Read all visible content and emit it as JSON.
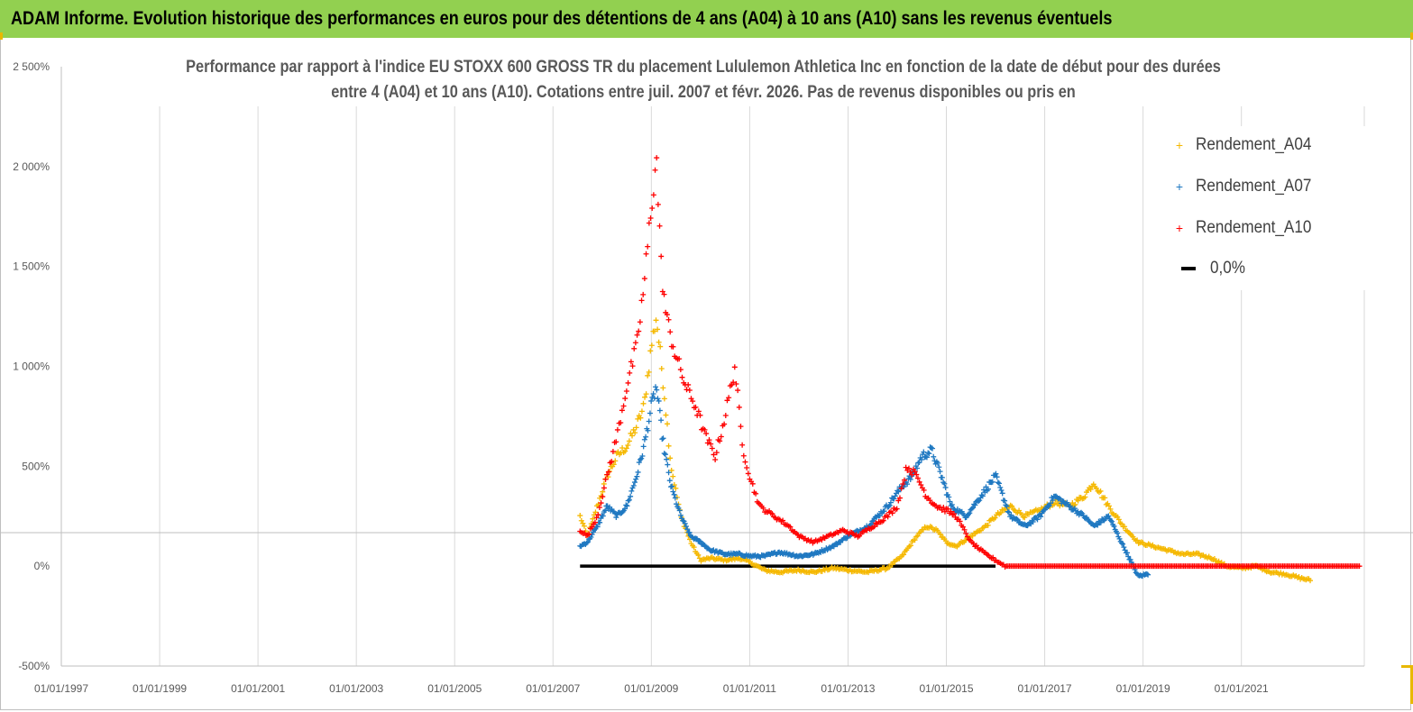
{
  "banner": {
    "title": "ADAM Informe. Evolution historique des performances en euros pour des détentions de 4 ans (A04) à 10 ans (A10) sans les revenus éventuels"
  },
  "chart_data": {
    "type": "scatter",
    "title_line1": "Performance par rapport à l'indice EU STOXX 600 GROSS TR  du placement Lululemon Athletica Inc en fonction de la date de début pour des durées",
    "title_line2": "entre 4 (A04) et 10 ans (A10).  Cotations entre juil. 2007 et févr. 2026. Pas de revenus disponibles ou pris en",
    "xlabel": "",
    "ylabel": "",
    "ylim": [
      -500,
      2500
    ],
    "xlim": [
      1997.0,
      2023.5
    ],
    "y_ticks": [
      "2 500%",
      "2 000%",
      "1 500%",
      "1 000%",
      "500%",
      "0%",
      "-500%"
    ],
    "y_tick_values": [
      2500,
      2000,
      1500,
      1000,
      500,
      0,
      -500
    ],
    "x_ticks": [
      "01/01/1997",
      "01/01/1999",
      "01/01/2001",
      "01/01/2003",
      "01/01/2005",
      "01/01/2007",
      "01/01/2009",
      "01/01/2011",
      "01/01/2013",
      "01/01/2015",
      "01/01/2017",
      "01/01/2019",
      "01/01/2021"
    ],
    "x_tick_values": [
      1997,
      1999,
      2001,
      2003,
      2005,
      2007,
      2009,
      2011,
      2013,
      2015,
      2017,
      2019,
      2021
    ],
    "series": [
      {
        "name": "Rendement_A04",
        "color": "#f5b800",
        "marker": "+",
        "x": [
          2007.55,
          2007.7,
          2007.9,
          2008.1,
          2008.3,
          2008.5,
          2008.7,
          2008.85,
          2009.0,
          2009.1,
          2009.25,
          2009.4,
          2009.6,
          2009.8,
          2010.0,
          2010.2,
          2010.5,
          2010.8,
          2011.0,
          2011.3,
          2011.6,
          2012.0,
          2012.3,
          2012.7,
          2013.0,
          2013.4,
          2013.8,
          2014.1,
          2014.4,
          2014.6,
          2014.8,
          2015.0,
          2015.2,
          2015.5,
          2015.8,
          2016.0,
          2016.3,
          2016.6,
          2016.9,
          2017.2,
          2017.5,
          2017.8,
          2018.0,
          2018.3,
          2018.6,
          2018.9,
          2019.2,
          2019.5,
          2019.8,
          2020.1,
          2020.4,
          2020.7,
          2021.0,
          2021.3,
          2021.6,
          2021.9,
          2022.2,
          2022.4
        ],
        "y": [
          250,
          150,
          300,
          450,
          550,
          600,
          700,
          800,
          1100,
          1250,
          900,
          500,
          250,
          120,
          30,
          40,
          30,
          40,
          20,
          -20,
          -30,
          -20,
          -30,
          -10,
          -20,
          -30,
          -10,
          50,
          150,
          200,
          180,
          120,
          100,
          150,
          200,
          250,
          300,
          250,
          280,
          320,
          300,
          350,
          420,
          300,
          200,
          120,
          100,
          80,
          60,
          60,
          40,
          0,
          -10,
          0,
          -30,
          -40,
          -60,
          -70
        ]
      },
      {
        "name": "Rendement_A07",
        "color": "#1f78c1",
        "marker": "+",
        "x": [
          2007.55,
          2007.7,
          2007.9,
          2008.1,
          2008.3,
          2008.5,
          2008.7,
          2008.85,
          2009.0,
          2009.1,
          2009.25,
          2009.4,
          2009.6,
          2009.8,
          2010.0,
          2010.2,
          2010.5,
          2010.8,
          2011.0,
          2011.3,
          2011.6,
          2012.0,
          2012.3,
          2012.7,
          2013.0,
          2013.4,
          2013.8,
          2014.1,
          2014.3,
          2014.5,
          2014.7,
          2014.9,
          2015.1,
          2015.4,
          2015.7,
          2016.0,
          2016.3,
          2016.6,
          2016.9,
          2017.2,
          2017.5,
          2017.8,
          2018.0,
          2018.3,
          2018.6,
          2018.9,
          2019.1
        ],
        "y": [
          100,
          120,
          200,
          300,
          250,
          300,
          450,
          600,
          800,
          900,
          600,
          400,
          250,
          150,
          120,
          80,
          60,
          60,
          50,
          50,
          70,
          50,
          60,
          100,
          150,
          200,
          300,
          400,
          450,
          550,
          580,
          450,
          300,
          250,
          350,
          450,
          250,
          200,
          250,
          350,
          300,
          250,
          200,
          250,
          100,
          -50,
          -40
        ]
      },
      {
        "name": "Rendement_A10",
        "color": "#ff0000",
        "marker": "+",
        "x": [
          2007.55,
          2007.7,
          2007.9,
          2008.1,
          2008.3,
          2008.5,
          2008.7,
          2008.85,
          2009.0,
          2009.1,
          2009.2,
          2009.3,
          2009.5,
          2009.7,
          2009.9,
          2010.1,
          2010.3,
          2010.5,
          2010.7,
          2010.85,
          2011.0,
          2011.2,
          2011.5,
          2011.8,
          2012.0,
          2012.3,
          2012.6,
          2012.9,
          2013.2,
          2013.5,
          2013.8,
          2014.0,
          2014.2,
          2014.4,
          2014.6,
          2014.8,
          2015.0,
          2015.2,
          2015.5,
          2015.8,
          2016.0,
          2016.2,
          2016.6,
          2017.0,
          2017.5,
          2018.0,
          2018.5,
          2019.0,
          2019.5,
          2020.0,
          2020.5,
          2021.0,
          2021.5,
          2022.0,
          2022.5,
          2023.0,
          2023.4
        ],
        "y": [
          180,
          150,
          250,
          450,
          650,
          900,
          1100,
          1400,
          1800,
          2050,
          1500,
          1250,
          1050,
          900,
          800,
          650,
          550,
          750,
          1000,
          600,
          450,
          300,
          250,
          200,
          150,
          120,
          150,
          180,
          150,
          200,
          250,
          300,
          500,
          450,
          350,
          300,
          280,
          250,
          120,
          60,
          30,
          0,
          0,
          0,
          0,
          0,
          0,
          0,
          0,
          0,
          0,
          0,
          0,
          0,
          0,
          0,
          0
        ]
      },
      {
        "name": "0,0%",
        "color": "#000000",
        "marker": "line",
        "x": [
          2007.55,
          2016.0
        ],
        "y": [
          0,
          0
        ]
      }
    ],
    "legend": {
      "position": "top-right",
      "entries": [
        "Rendement_A04",
        "Rendement_A07",
        "Rendement_A10",
        "0,0%"
      ]
    }
  }
}
